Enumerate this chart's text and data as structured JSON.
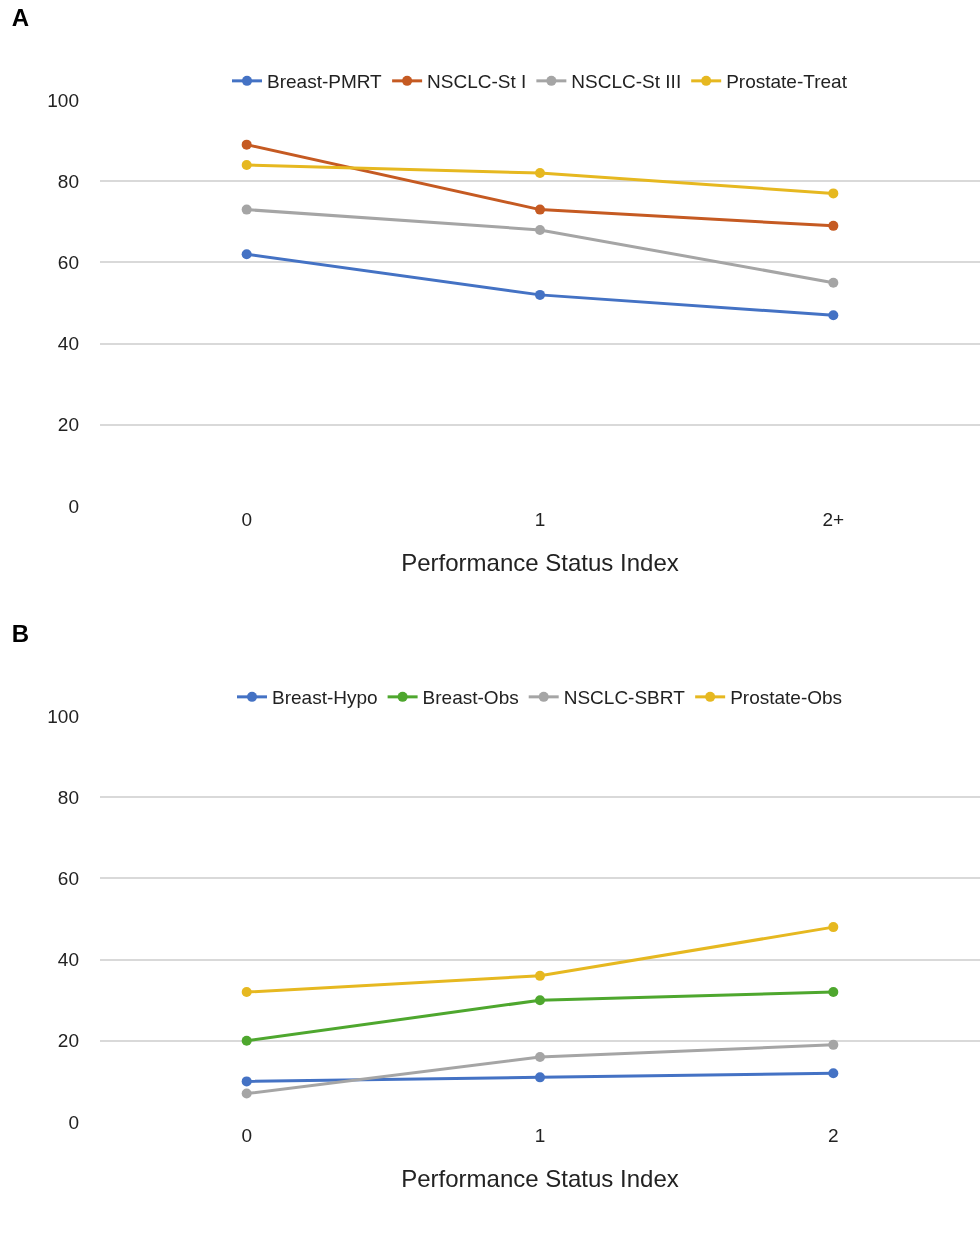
{
  "chart_data": [
    {
      "type": "line",
      "title": "A",
      "xlabel": "Performance Status Index",
      "categories": [
        "0",
        "1",
        "2+"
      ],
      "ylim": [
        0,
        100
      ],
      "yticks": [
        0,
        20,
        40,
        60,
        80,
        100
      ],
      "grid": "y",
      "legend": "top",
      "marker": "circle",
      "line_style": "solid",
      "series": [
        {
          "name": "Breast-PMRT",
          "color": "#4472c4",
          "values": [
            62,
            52,
            47
          ]
        },
        {
          "name": "NSCLC-St I",
          "color": "#c55a22",
          "values": [
            89,
            73,
            69
          ]
        },
        {
          "name": "NSCLC-St III",
          "color": "#a5a5a5",
          "values": [
            73,
            68,
            55
          ]
        },
        {
          "name": "Prostate-Treat",
          "color": "#e6b820",
          "values": [
            84,
            82,
            77
          ]
        }
      ]
    },
    {
      "type": "line",
      "title": "B",
      "xlabel": "Performance Status Index",
      "categories": [
        "0",
        "1",
        "2"
      ],
      "ylim": [
        0,
        100
      ],
      "yticks": [
        0,
        20,
        40,
        60,
        80,
        100
      ],
      "grid": "y",
      "legend": "top",
      "marker": "circle",
      "line_style": "solid",
      "series": [
        {
          "name": "Breast-Hypo",
          "color": "#4472c4",
          "values": [
            10,
            11,
            12
          ]
        },
        {
          "name": "Breast-Obs",
          "color": "#4ea72e",
          "values": [
            20,
            30,
            32
          ]
        },
        {
          "name": "NSCLC-SBRT",
          "color": "#a5a5a5",
          "values": [
            7,
            16,
            19
          ]
        },
        {
          "name": "Prostate-Obs",
          "color": "#e6b820",
          "values": [
            32,
            36,
            48
          ]
        }
      ]
    }
  ]
}
